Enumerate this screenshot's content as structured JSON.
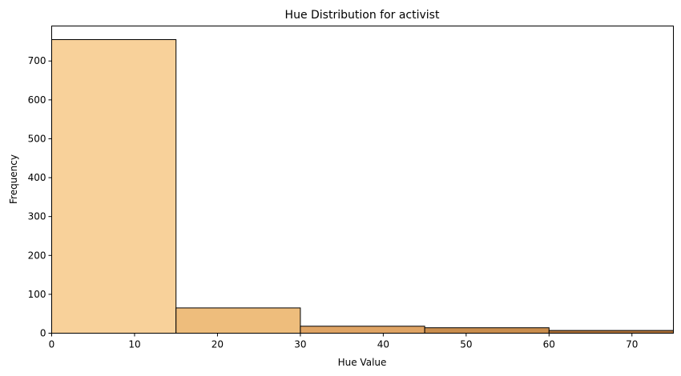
{
  "chart_data": {
    "type": "bar",
    "title": "Hue Distribution for activist",
    "xlabel": "Hue Value",
    "ylabel": "Frequency",
    "bins": [
      {
        "start": 0,
        "end": 15,
        "value": 755,
        "color": "#f8d19a"
      },
      {
        "start": 15,
        "end": 30,
        "value": 65,
        "color": "#eebd7c"
      },
      {
        "start": 30,
        "end": 45,
        "value": 18,
        "color": "#dfa464"
      },
      {
        "start": 45,
        "end": 60,
        "value": 14,
        "color": "#c98d4d"
      },
      {
        "start": 60,
        "end": 75,
        "value": 7,
        "color": "#b0733a"
      }
    ],
    "xlim": [
      0,
      75
    ],
    "ylim": [
      0,
      790
    ],
    "xticks": [
      0,
      10,
      20,
      30,
      40,
      50,
      60,
      70
    ],
    "yticks": [
      0,
      100,
      200,
      300,
      400,
      500,
      600,
      700
    ],
    "grid": false,
    "bar_edge_color": "#000000"
  }
}
